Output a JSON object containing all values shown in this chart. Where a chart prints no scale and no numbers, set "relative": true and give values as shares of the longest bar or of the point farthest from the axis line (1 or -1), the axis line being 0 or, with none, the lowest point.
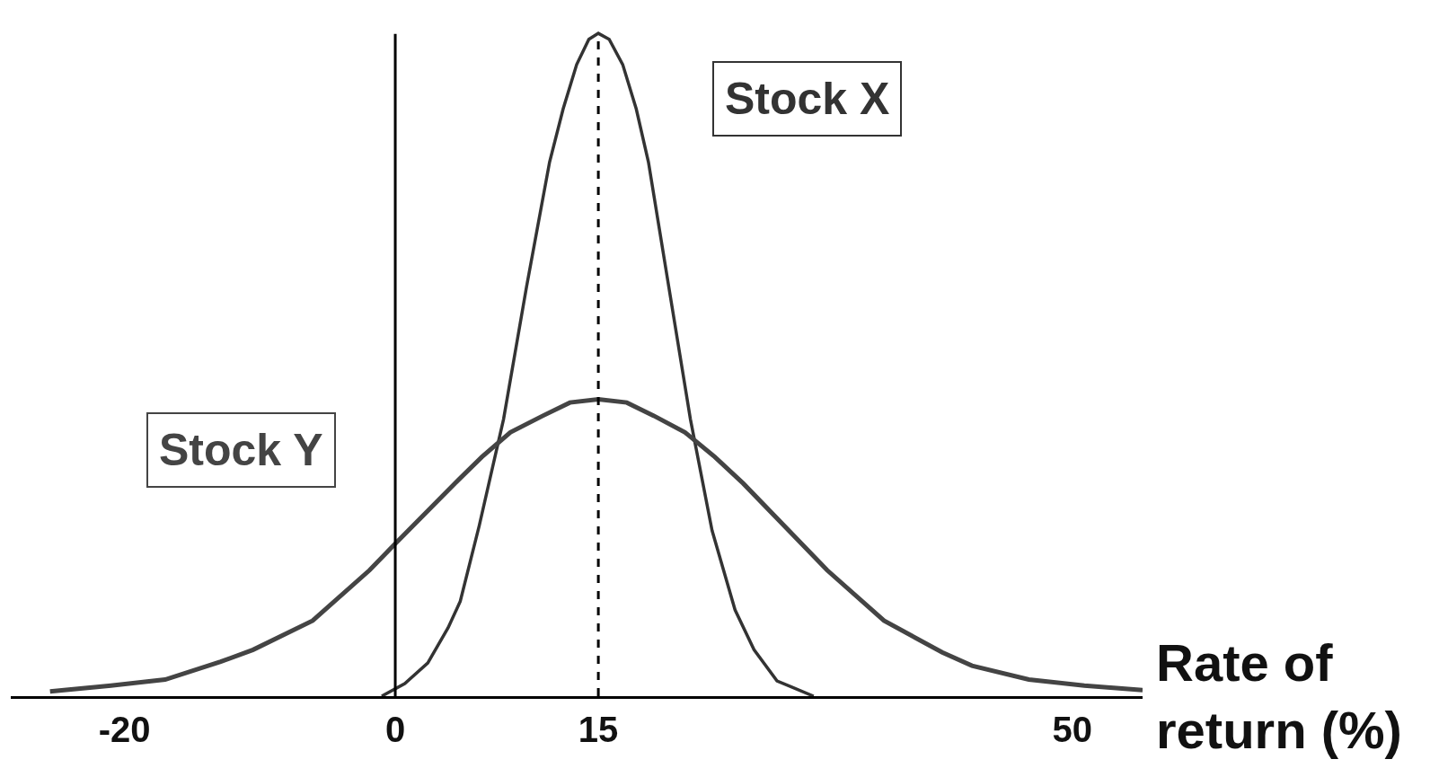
{
  "chart_data": {
    "type": "line",
    "relative": true,
    "xlabel": "Rate of return (%)",
    "xlim": [
      -28.4,
      55.2
    ],
    "xticks": [
      -20,
      0,
      15,
      50
    ],
    "series": [
      {
        "name": "Stock X",
        "color": "#333333",
        "x": [
          -1.0,
          0.7,
          2.4,
          3.9,
          4.8,
          6.2,
          8.0,
          9.7,
          11.4,
          12.4,
          13.4,
          14.3,
          15.0,
          15.8,
          16.8,
          17.8,
          18.7,
          20.2,
          21.8,
          23.4,
          25.1,
          26.5,
          28.2,
          30.9
        ],
        "values": [
          0,
          0.019,
          0.05,
          0.103,
          0.143,
          0.257,
          0.418,
          0.618,
          0.806,
          0.886,
          0.953,
          0.991,
          1,
          0.991,
          0.953,
          0.886,
          0.806,
          0.618,
          0.418,
          0.25,
          0.13,
          0.07,
          0.023,
          0
        ]
      },
      {
        "name": "Stock Y",
        "color": "#444444",
        "x": [
          -25.5,
          -21.0,
          -17.0,
          -12.9,
          -10.5,
          -6.1,
          -1.9,
          0,
          4.4,
          6.4,
          8.5,
          10.9,
          12.9,
          15,
          17.1,
          19.1,
          21.4,
          23.6,
          25.7,
          31.9,
          36.1,
          40.4,
          42.6,
          46.8,
          50.9,
          55.2
        ],
        "values": [
          0.007,
          0.016,
          0.025,
          0.052,
          0.07,
          0.114,
          0.19,
          0.23,
          0.321,
          0.361,
          0.398,
          0.423,
          0.443,
          0.448,
          0.443,
          0.423,
          0.398,
          0.361,
          0.321,
          0.19,
          0.114,
          0.066,
          0.046,
          0.025,
          0.016,
          0.009
        ]
      }
    ],
    "ref_lines": [
      {
        "axis": "x",
        "value": 0,
        "color": "#000000",
        "line_style": "solid"
      },
      {
        "axis": "x",
        "value": 15,
        "color": "#000000",
        "line_style": "dashed"
      }
    ],
    "legend": false,
    "marker": "none",
    "line_style": "solid"
  }
}
